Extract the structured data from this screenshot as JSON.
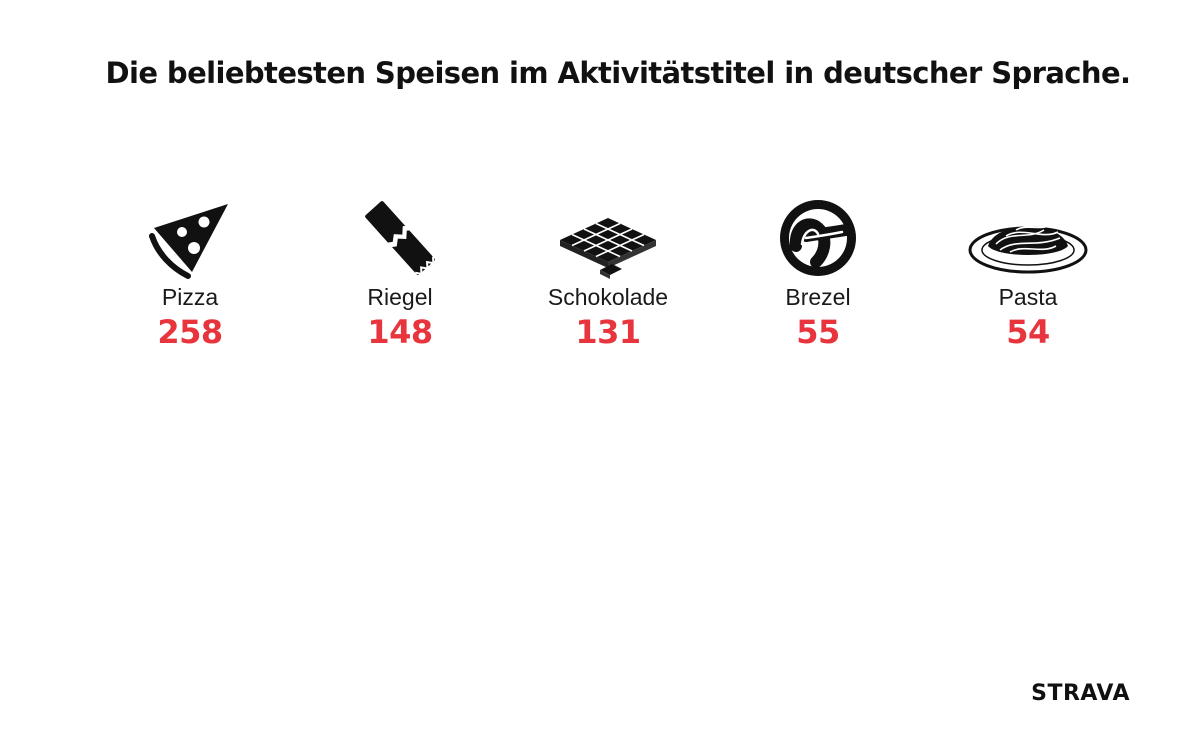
{
  "title": "Die beliebtesten Speisen im Aktivitätstitel in deutscher Sprache.",
  "logo": "STRAVA",
  "accent_color": "#e8343d",
  "chart_data": {
    "type": "table",
    "title": "Die beliebtesten Speisen im Aktivitätstitel in deutscher Sprache.",
    "categories": [
      "Pizza",
      "Riegel",
      "Schokolade",
      "Brezel",
      "Pasta"
    ],
    "values": [
      258,
      148,
      131,
      55,
      54
    ],
    "icons": [
      "pizza-slice-icon",
      "energy-bar-icon",
      "chocolate-bar-icon",
      "pretzel-icon",
      "pasta-plate-icon"
    ]
  }
}
